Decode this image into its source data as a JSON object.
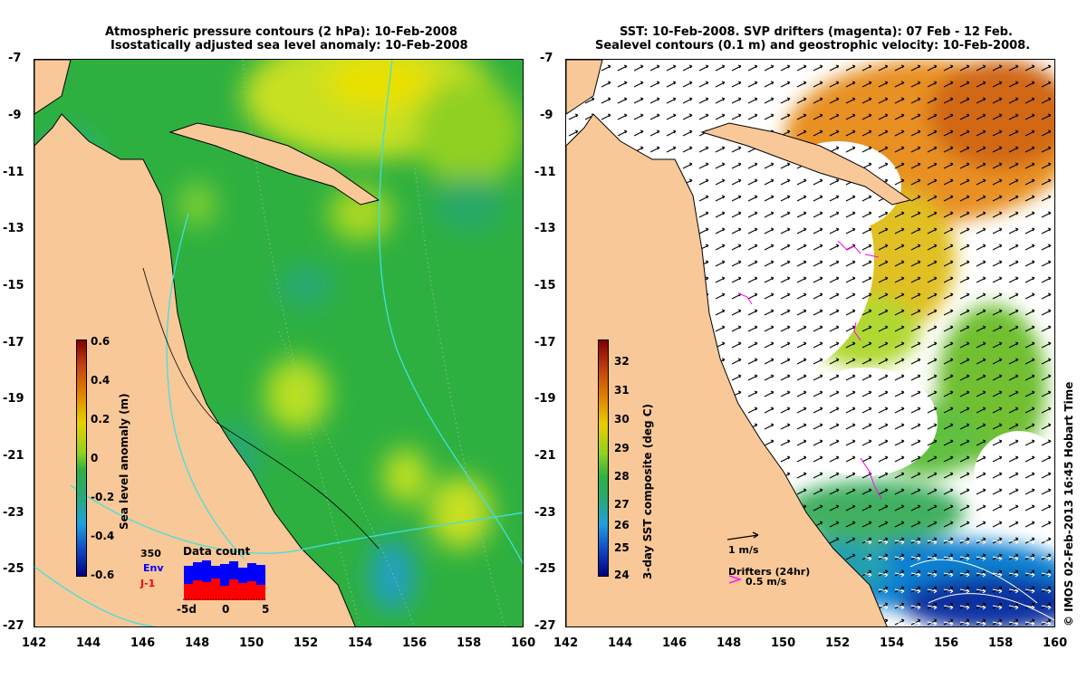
{
  "left_panel": {
    "title_line1": "Atmospheric pressure contours (2 hPa): 10-Feb-2008",
    "title_line2": "Isostatically adjusted sea level anomaly: 10-Feb-2008",
    "colorbar_label": "Sea level anomaly (m)",
    "colorbar_ticks": [
      "0.6",
      "0.4",
      "0.2",
      "0",
      "-0.2",
      "-0.4",
      "-0.6"
    ],
    "inset": {
      "title": "Data count",
      "max_label": "350",
      "env_label": "Env",
      "j1_label": "J-1",
      "x_ticks": [
        "-5d",
        "0",
        "5"
      ],
      "env_color": "#0000ff",
      "j1_color": "#ff0000"
    }
  },
  "right_panel": {
    "title_line1": "SST: 10-Feb-2008. SVP drifters (magenta): 07 Feb - 12 Feb.",
    "title_line2": "Sealevel contours (0.1 m) and geostrophic velocity: 10-Feb-2008.",
    "colorbar_label": "3-day SST composite (deg C)",
    "colorbar_ticks": [
      "32",
      "31",
      "30",
      "29",
      "28",
      "27",
      "26",
      "25",
      "24"
    ],
    "velocity_scale_label": "1 m/s",
    "drifters_label": "Drifters (24hr)",
    "drifter_speed_label": "0.5 m/s",
    "drifter_color": "#ff00ff"
  },
  "y_ticks": [
    "-7",
    "-9",
    "-11",
    "-13",
    "-15",
    "-17",
    "-19",
    "-21",
    "-23",
    "-25",
    "-27"
  ],
  "x_ticks": [
    "142",
    "144",
    "146",
    "148",
    "150",
    "152",
    "154",
    "156",
    "158",
    "160"
  ],
  "credit": "© IMOS 02-Feb-2013 16:45 Hobart Time",
  "colors": {
    "land": "#f8c898",
    "coast": "#000000",
    "ocean_white": "#ffffff",
    "pressure_contour": "#40e0e0"
  }
}
